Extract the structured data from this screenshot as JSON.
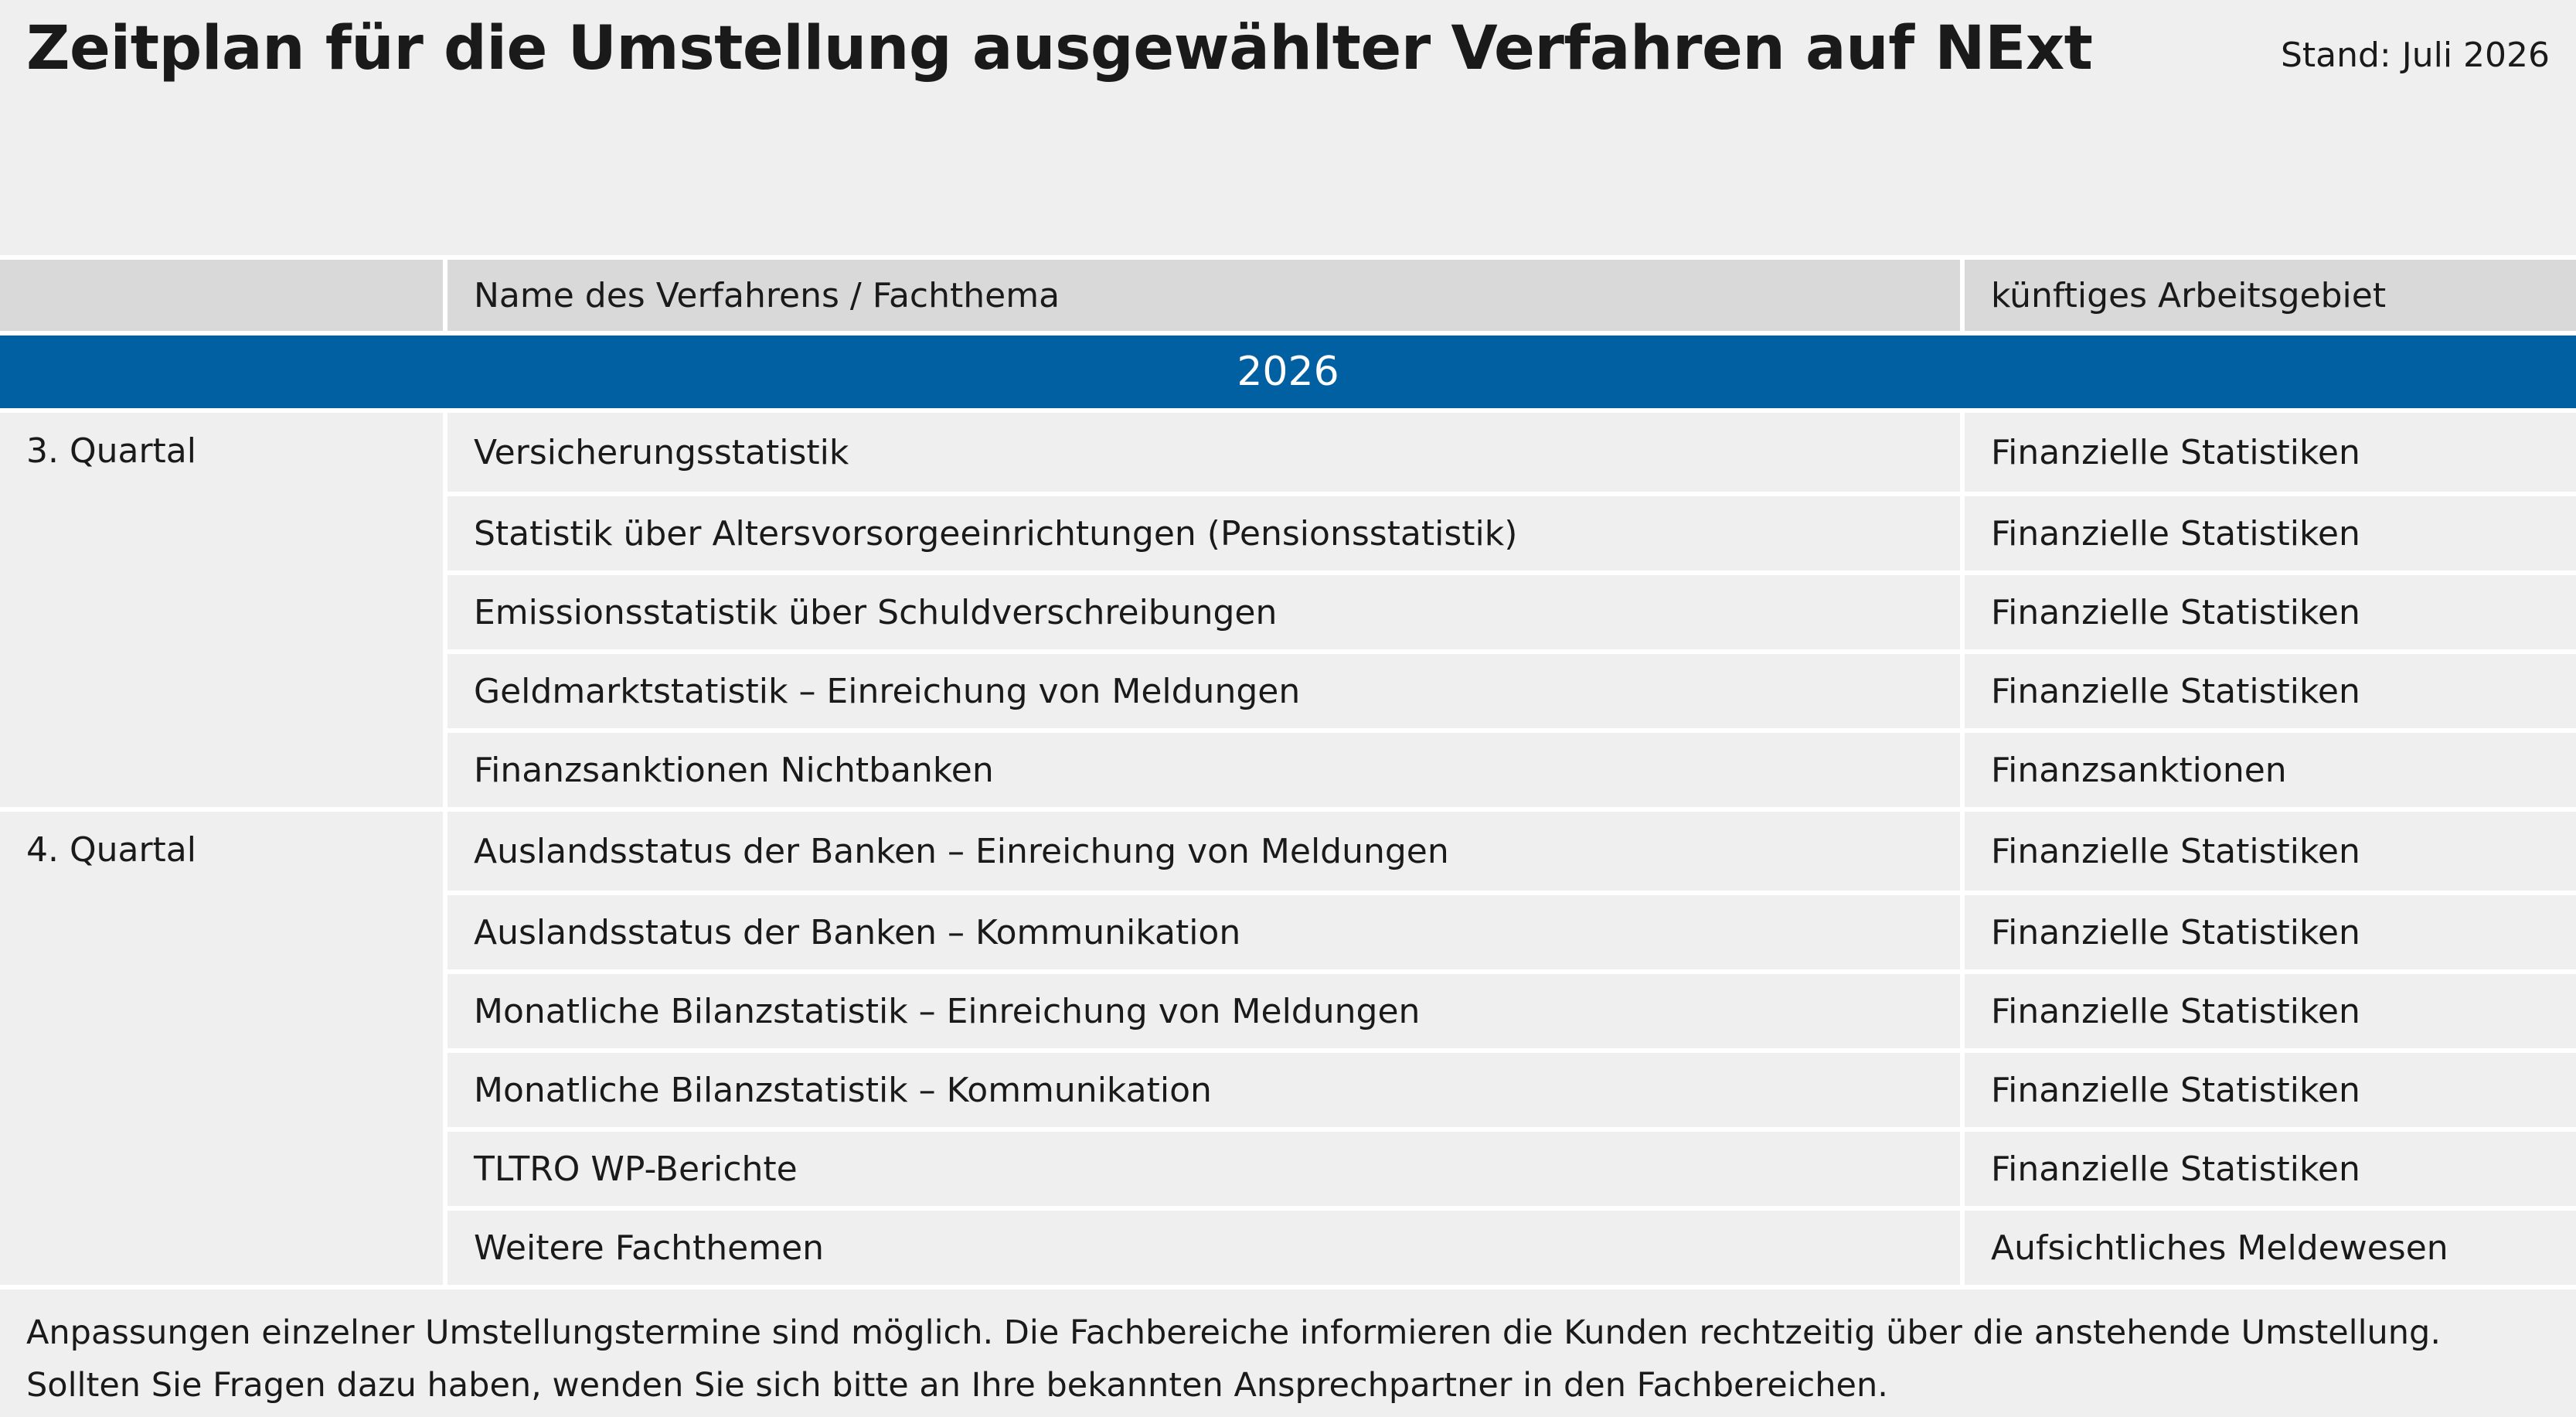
{
  "header": {
    "title": "Zeitplan für die Umstellung ausgewählter Verfahren auf NExt",
    "stand": "Stand: Juli 2026"
  },
  "table": {
    "columns": [
      "",
      "Name des Verfahrens / Fachthema",
      "künftiges Arbeitsgebiet"
    ],
    "year": "2026",
    "groups": [
      {
        "label": "3. Quartal",
        "rows": [
          {
            "name": "Versicherungsstatistik",
            "area": "Finanzielle Statistiken"
          },
          {
            "name": "Statistik über Altersvorsorgeeinrichtungen (Pensionsstatistik)",
            "area": "Finanzielle Statistiken"
          },
          {
            "name": "Emissionsstatistik über Schuldverschreibungen",
            "area": "Finanzielle Statistiken"
          },
          {
            "name": "Geldmarktstatistik – Einreichung von Meldungen",
            "area": "Finanzielle Statistiken"
          },
          {
            "name": "Finanzsanktionen Nichtbanken",
            "area": "Finanzsanktionen"
          }
        ]
      },
      {
        "label": "4. Quartal",
        "rows": [
          {
            "name": "Auslandsstatus der Banken – Einreichung von Meldungen",
            "area": "Finanzielle Statistiken"
          },
          {
            "name": "Auslandsstatus der Banken – Kommunikation",
            "area": "Finanzielle Statistiken"
          },
          {
            "name": "Monatliche Bilanzstatistik – Einreichung von Meldungen",
            "area": "Finanzielle Statistiken"
          },
          {
            "name": "Monatliche Bilanzstatistik – Kommunikation",
            "area": "Finanzielle Statistiken"
          },
          {
            "name": "TLTRO WP-Berichte",
            "area": "Finanzielle Statistiken"
          },
          {
            "name": "Weitere Fachthemen",
            "area": "Aufsichtliches Meldewesen"
          }
        ]
      }
    ]
  },
  "footer": {
    "line1": "Anpassungen einzelner Umstellungstermine sind möglich. Die Fachbereiche informieren die Kunden rechtzeitig über die anstehende Umstellung.",
    "line2": "Sollten Sie Fragen dazu haben, wenden Sie sich bitte an Ihre bekannten Ansprechpartner in den Fachbereichen."
  }
}
